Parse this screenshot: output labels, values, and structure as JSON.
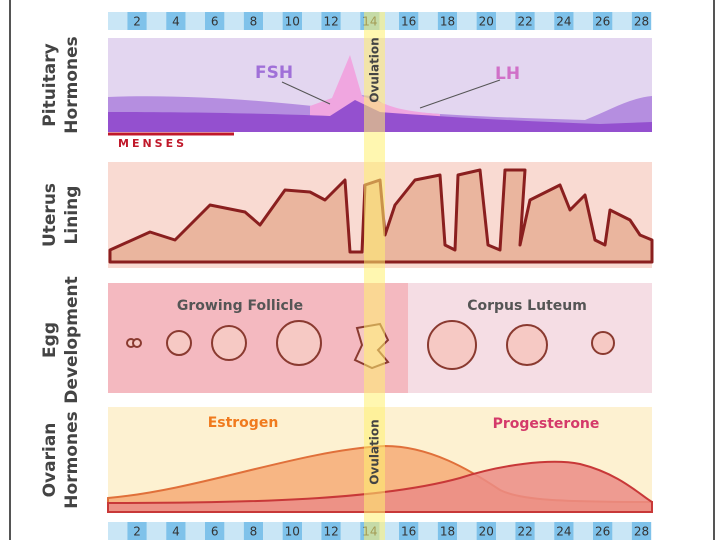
{
  "day_scale": {
    "top": [
      2,
      4,
      6,
      8,
      10,
      12,
      14,
      16,
      18,
      20,
      22,
      24,
      26,
      28
    ],
    "bottom": [
      2,
      4,
      6,
      8,
      10,
      12,
      14,
      16,
      18,
      20,
      22,
      24,
      26,
      28
    ]
  },
  "panels": {
    "pituitary": {
      "label_1": "Pituitary",
      "label_2": "Hormones",
      "fsh": "FSH",
      "lh": "LH",
      "menses": "MENSES",
      "ovulation": "Ovulation"
    },
    "uterus": {
      "label_1": "Uterus",
      "label_2": "Lining"
    },
    "egg": {
      "label_1": "Egg",
      "label_2": "Development",
      "growing": "Growing Follicle",
      "corpus": "Corpus Luteum"
    },
    "ovarian": {
      "label_1": "Ovarian",
      "label_2": "Hormones",
      "estrogen": "Estrogen",
      "progesterone": "Progesterone",
      "ovulation": "Ovulation"
    }
  }
}
